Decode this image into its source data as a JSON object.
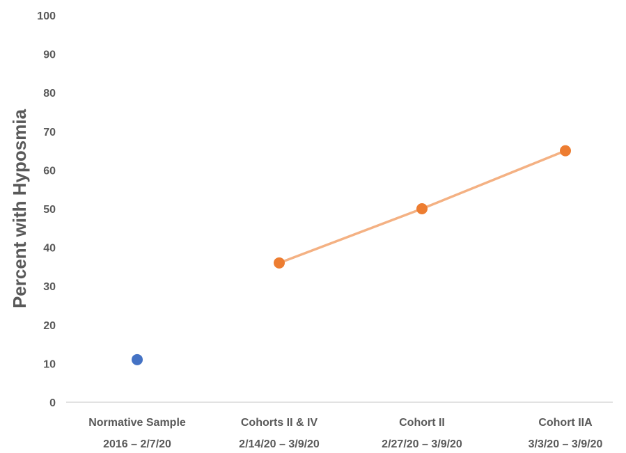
{
  "chart_data": {
    "type": "line",
    "title": "",
    "xlabel": "",
    "ylabel": "Percent with Hyposmia",
    "ylim": [
      0,
      100
    ],
    "yticks": [
      0,
      10,
      20,
      30,
      40,
      50,
      60,
      70,
      80,
      90,
      100
    ],
    "grid": false,
    "legend": "none",
    "categories": [
      {
        "name": "Normative Sample",
        "dates": "2016 – 2/7/20"
      },
      {
        "name": "Cohorts II & IV",
        "dates": "2/14/20 – 3/9/20"
      },
      {
        "name": "Cohort II",
        "dates": "2/27/20 – 3/9/20"
      },
      {
        "name": "Cohort IIA",
        "dates": "3/3/20 – 3/9/20"
      }
    ],
    "series": [
      {
        "color": "#4472c4",
        "line": false,
        "points": [
          {
            "category_index": 0,
            "value": 11
          }
        ]
      },
      {
        "color": "#ed7d31",
        "line_color": "#f4b183",
        "line": true,
        "points": [
          {
            "category_index": 1,
            "value": 36
          },
          {
            "category_index": 2,
            "value": 50
          },
          {
            "category_index": 3,
            "value": 65
          }
        ]
      }
    ]
  }
}
